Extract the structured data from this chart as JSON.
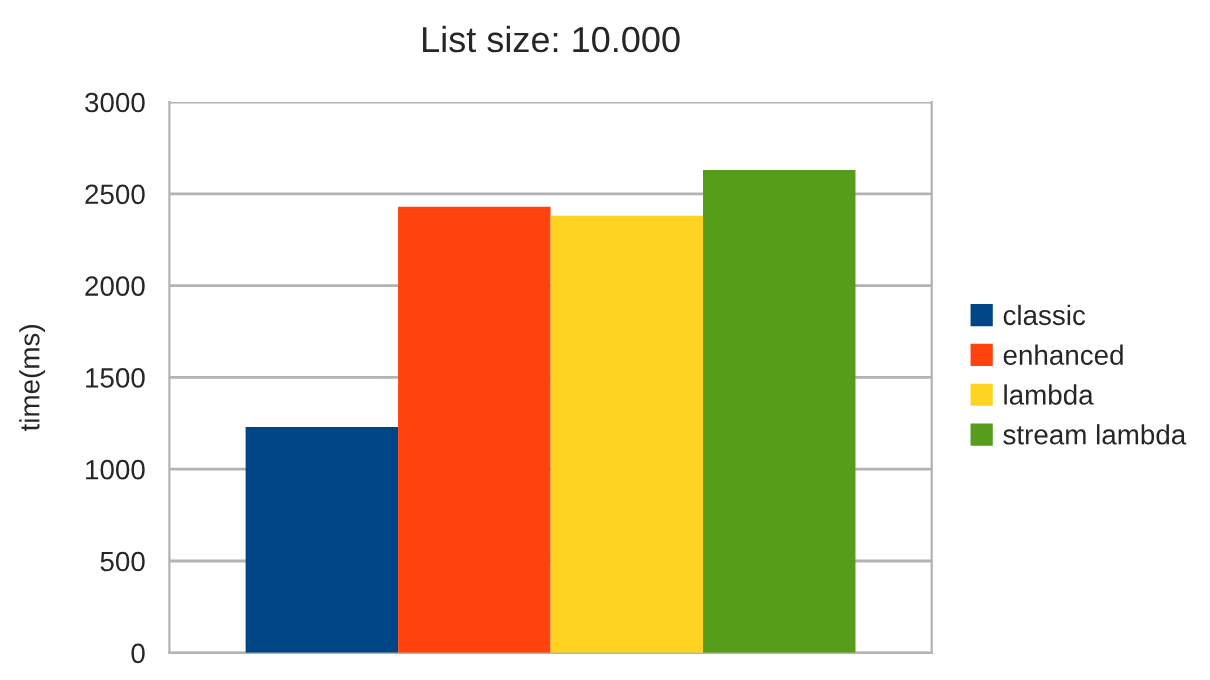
{
  "chart_data": {
    "type": "bar",
    "title": "List size: 10.000",
    "ylabel": "time(ms)",
    "categories": [
      null
    ],
    "series": [
      {
        "name": "classic",
        "color": "#004586",
        "values": [
          1230
        ]
      },
      {
        "name": "enhanced",
        "color": "#ff420e",
        "values": [
          2430
        ]
      },
      {
        "name": "lambda",
        "color": "#ffd320",
        "values": [
          2380
        ]
      },
      {
        "name": "stream lambda",
        "color": "#579d1c",
        "values": [
          2630
        ]
      }
    ],
    "ylim": [
      0,
      3000
    ],
    "yticks": [
      0,
      500,
      1000,
      1500,
      2000,
      2500,
      3000
    ],
    "grid": "y",
    "legend": "right"
  }
}
